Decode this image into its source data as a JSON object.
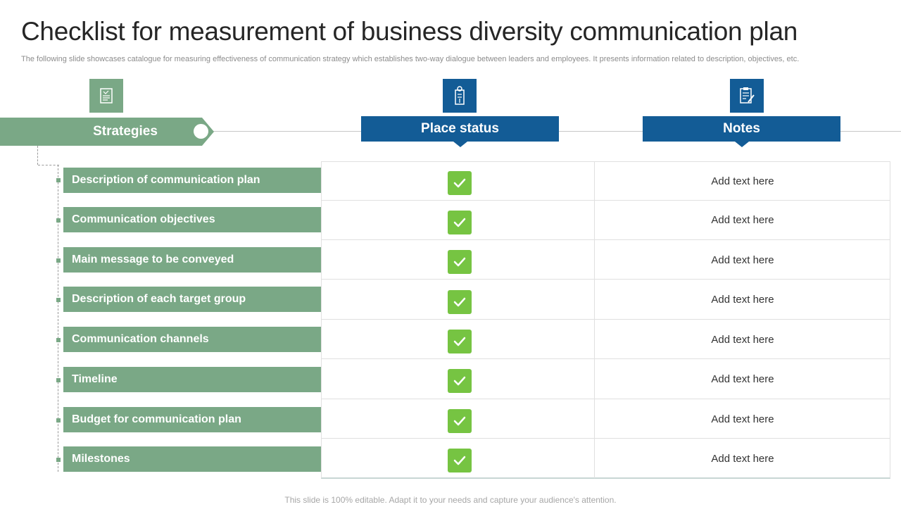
{
  "slide": {
    "title": "Checklist for measurement of business diversity communication plan",
    "subtitle": "The following slide showcases catalogue for measuring effectiveness of communication strategy which establishes two-way dialogue between leaders and employees. It presents information related to description, objectives, etc.",
    "footer": "This slide is 100% editable. Adapt it to your needs and capture your audience's attention."
  },
  "headers": {
    "strategies": "Strategies",
    "place_status": "Place status",
    "notes": "Notes"
  },
  "rows": [
    {
      "strategy": "Description of communication plan",
      "status": "checked",
      "note": "Add text here"
    },
    {
      "strategy": "Communication objectives",
      "status": "checked",
      "note": "Add text here"
    },
    {
      "strategy": "Main message to be conveyed",
      "status": "checked",
      "note": "Add text here"
    },
    {
      "strategy": "Description of each target group",
      "status": "checked",
      "note": "Add text here"
    },
    {
      "strategy": "Communication channels",
      "status": "checked",
      "note": "Add text here"
    },
    {
      "strategy": "Timeline",
      "status": "checked",
      "note": "Add text here"
    },
    {
      "strategy": "Budget for communication plan",
      "status": "checked",
      "note": "Add text here"
    },
    {
      "strategy": "Milestones",
      "status": "checked",
      "note": "Add text here"
    }
  ],
  "icons": {
    "strategies": "document-icon",
    "place_status": "id-badge-icon",
    "notes": "clipboard-pen-icon",
    "status": "checkmark-icon"
  },
  "colors": {
    "green": "#7aa886",
    "blue": "#135c96",
    "check": "#76c442"
  }
}
